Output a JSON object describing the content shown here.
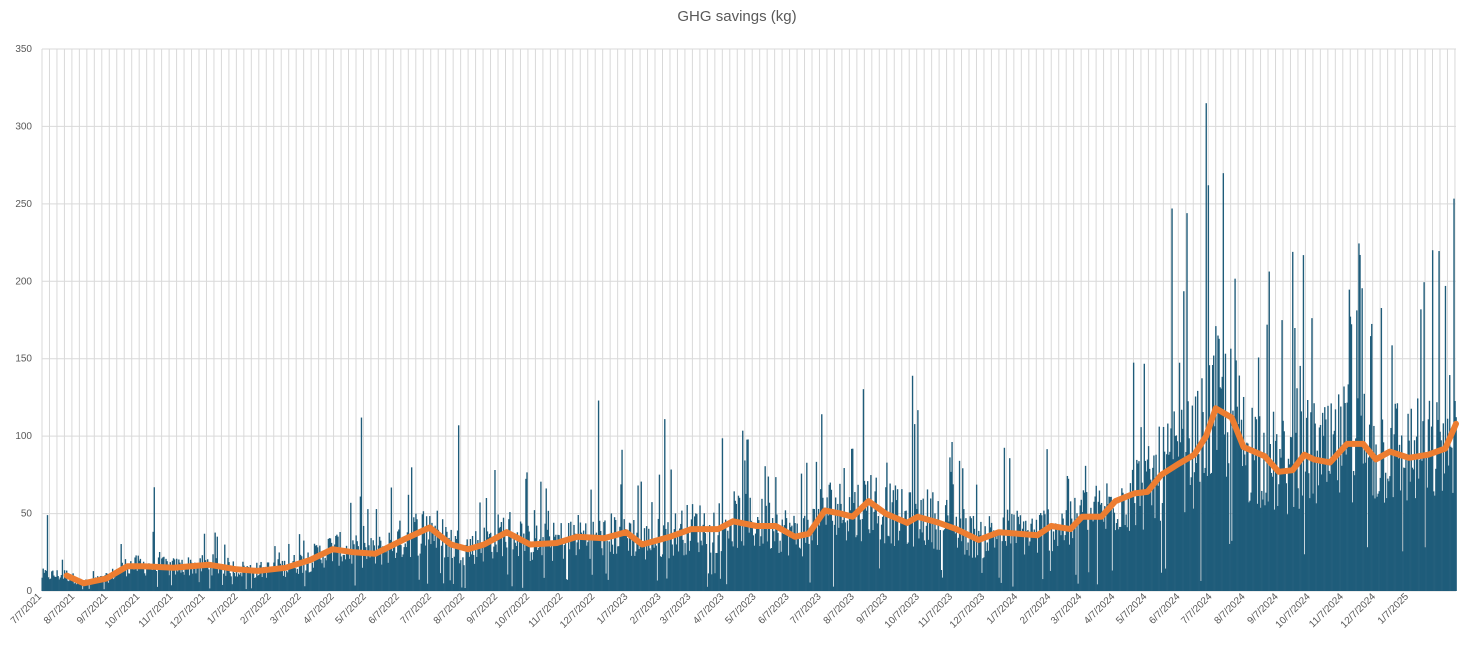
{
  "chart_data": {
    "type": "bar",
    "title": "GHG savings (kg)",
    "xlabel": "",
    "ylabel": "",
    "ylim": [
      0,
      350
    ],
    "yticks": [
      0,
      50,
      100,
      150,
      200,
      250,
      300,
      350
    ],
    "grid": true,
    "legend": "none",
    "x_tick_labels": [
      "7/7/2021",
      "8/7/2021",
      "9/7/2021",
      "10/7/2021",
      "11/7/2021",
      "12/7/2021",
      "1/7/2022",
      "2/7/2022",
      "3/7/2022",
      "4/7/2022",
      "5/7/2022",
      "6/7/2022",
      "7/7/2022",
      "8/7/2022",
      "9/7/2022",
      "10/7/2022",
      "11/7/2022",
      "12/7/2022",
      "1/7/2023",
      "2/7/2023",
      "3/7/2023",
      "4/7/2023",
      "5/7/2023",
      "6/7/2023",
      "7/7/2023",
      "8/7/2023",
      "9/7/2023",
      "10/7/2023",
      "11/7/2023",
      "12/7/2023",
      "1/7/2024",
      "2/7/2024",
      "3/7/2024",
      "4/7/2024",
      "5/7/2024",
      "6/7/2024",
      "7/7/2024",
      "8/7/2024",
      "9/7/2024",
      "10/7/2024",
      "11/7/2024",
      "12/7/2024",
      "1/7/2025"
    ],
    "date_range": [
      "2021-07-07",
      "2025-02-20"
    ],
    "series": [
      {
        "name": "",
        "kind": "bar",
        "color": "#1f5c7a",
        "frequency": "daily",
        "note_values": "daily bars estimated from chart; generated to follow the moving-average series with noise",
        "notable_peaks": [
          {
            "x": "2021-07-12",
            "y": 49
          },
          {
            "x": "2021-10-20",
            "y": 67
          },
          {
            "x": "2022-05-02",
            "y": 112
          },
          {
            "x": "2022-08-01",
            "y": 107
          },
          {
            "x": "2022-12-10",
            "y": 123
          },
          {
            "x": "2023-02-10",
            "y": 111
          },
          {
            "x": "2023-09-30",
            "y": 139
          },
          {
            "x": "2024-05-30",
            "y": 247
          },
          {
            "x": "2024-06-13",
            "y": 244
          },
          {
            "x": "2024-07-01",
            "y": 315
          },
          {
            "x": "2024-07-03",
            "y": 262
          },
          {
            "x": "2024-09-20",
            "y": 219
          },
          {
            "x": "2024-11-22",
            "y": 217
          },
          {
            "x": "2025-02-10",
            "y": 197
          }
        ]
      },
      {
        "name": "",
        "kind": "line",
        "color": "#ed7d31",
        "x": [
          "2021-07-30",
          "2021-08-15",
          "2021-09-05",
          "2021-09-25",
          "2021-10-10",
          "2021-11-07",
          "2021-12-10",
          "2022-01-05",
          "2022-01-25",
          "2022-02-20",
          "2022-03-15",
          "2022-04-05",
          "2022-04-25",
          "2022-05-15",
          "2022-06-10",
          "2022-07-05",
          "2022-07-25",
          "2022-08-10",
          "2022-08-25",
          "2022-09-15",
          "2022-10-07",
          "2022-11-01",
          "2022-11-20",
          "2022-12-15",
          "2023-01-05",
          "2023-01-20",
          "2023-02-15",
          "2023-03-07",
          "2023-04-01",
          "2023-04-15",
          "2023-05-07",
          "2023-05-25",
          "2023-06-12",
          "2023-06-25",
          "2023-07-10",
          "2023-07-25",
          "2023-08-05",
          "2023-08-20",
          "2023-09-05",
          "2023-09-25",
          "2023-10-05",
          "2023-10-25",
          "2023-11-10",
          "2023-12-01",
          "2023-12-20",
          "2024-01-07",
          "2024-01-25",
          "2024-02-07",
          "2024-02-25",
          "2024-03-07",
          "2024-03-25",
          "2024-04-07",
          "2024-04-25",
          "2024-05-07",
          "2024-05-20",
          "2024-06-05",
          "2024-06-20",
          "2024-07-01",
          "2024-07-10",
          "2024-07-25",
          "2024-08-05",
          "2024-08-15",
          "2024-08-25",
          "2024-09-07",
          "2024-09-20",
          "2024-10-01",
          "2024-10-10",
          "2024-10-25",
          "2024-11-10",
          "2024-11-25",
          "2024-12-07",
          "2024-12-20",
          "2025-01-07",
          "2025-01-25",
          "2025-02-10",
          "2025-02-20"
        ],
        "values": [
          10,
          5,
          8,
          16,
          16,
          15,
          17,
          14,
          13,
          15,
          20,
          27,
          25,
          24,
          33,
          41,
          30,
          27,
          30,
          38,
          30,
          31,
          35,
          34,
          38,
          30,
          35,
          40,
          40,
          45,
          42,
          42,
          35,
          37,
          52,
          50,
          48,
          58,
          50,
          44,
          48,
          44,
          40,
          33,
          38,
          37,
          36,
          42,
          40,
          48,
          48,
          58,
          63,
          64,
          75,
          82,
          88,
          100,
          118,
          112,
          93,
          90,
          87,
          77,
          78,
          88,
          85,
          83,
          95,
          95,
          85,
          90,
          86,
          88,
          92,
          108
        ]
      }
    ]
  }
}
